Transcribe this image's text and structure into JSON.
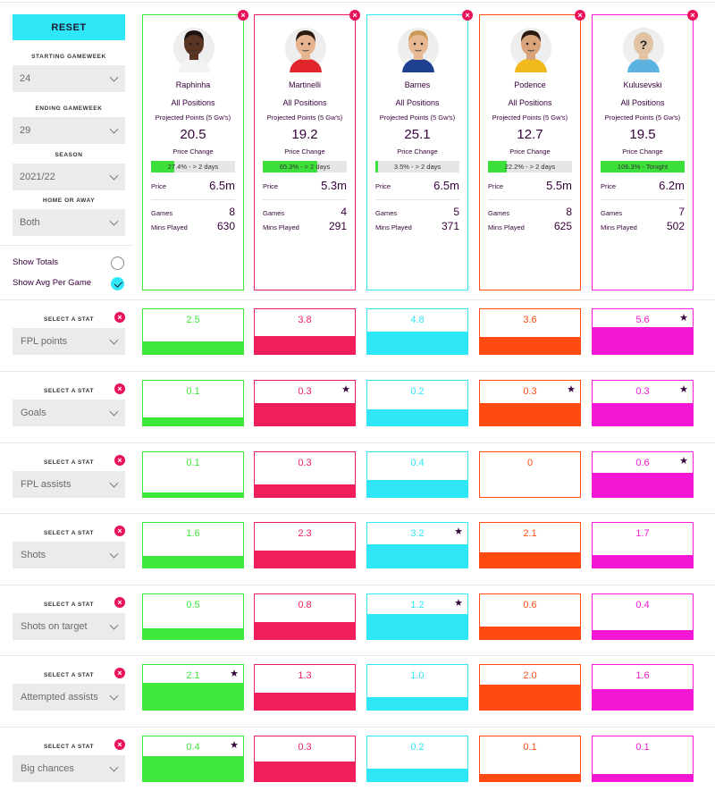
{
  "reset_label": "RESET",
  "filters": [
    {
      "label": "STARTING GAMEWEEK",
      "value": "24"
    },
    {
      "label": "ENDING GAMEWEEK",
      "value": "29"
    },
    {
      "label": "SEASON",
      "value": "2021/22"
    },
    {
      "label": "HOME OR AWAY",
      "value": "Both"
    }
  ],
  "toggles": [
    {
      "label": "Show Totals",
      "checked": false
    },
    {
      "label": "Show Avg Per Game",
      "checked": true
    }
  ],
  "card_labels": {
    "projected": "Projected Points (5 Gw's)",
    "price_change": "Price Change",
    "price": "Price",
    "games": "Games",
    "mins": "Mins Played"
  },
  "players": [
    {
      "name": "Raphinha",
      "position": "All Positions",
      "projected": "20.5",
      "price_change_text": "27.4% - > 2 days",
      "price_change_pct": 27.4,
      "price": "6.5m",
      "games": "8",
      "mins": "630",
      "color": "#3de83a",
      "avatar": "dark"
    },
    {
      "name": "Martinelli",
      "position": "All Positions",
      "projected": "19.2",
      "price_change_text": "65.3% - > 2 days",
      "price_change_pct": 65.3,
      "price": "5.3m",
      "games": "4",
      "mins": "291",
      "color": "#f01e5a",
      "avatar": "red"
    },
    {
      "name": "Barnes",
      "position": "All Positions",
      "projected": "25.1",
      "price_change_text": "3.5% - > 2 days",
      "price_change_pct": 3.5,
      "price": "6.5m",
      "games": "5",
      "mins": "371",
      "color": "#2ee6f5",
      "avatar": "blue"
    },
    {
      "name": "Podence",
      "position": "All Positions",
      "projected": "12.7",
      "price_change_text": "22.2% - > 2 days",
      "price_change_pct": 22.2,
      "price": "5.5m",
      "games": "8",
      "mins": "625",
      "color": "#ff4b12",
      "avatar": "yellow"
    },
    {
      "name": "Kulusevski",
      "position": "All Positions",
      "projected": "19.5",
      "price_change_text": "106.3% - Tonight",
      "price_change_pct": 100,
      "price": "6.2m",
      "games": "7",
      "mins": "502",
      "color": "#f318d6",
      "avatar": "unknown"
    }
  ],
  "stat_select_label": "SELECT A STAT",
  "stats": [
    {
      "name": "FPL points",
      "values": [
        "2.5",
        "3.8",
        "4.8",
        "3.6",
        "5.6"
      ],
      "fills": [
        0.28,
        0.4,
        0.5,
        0.38,
        0.6
      ],
      "star": 4
    },
    {
      "name": "Goals",
      "values": [
        "0.1",
        "0.3",
        "0.2",
        "0.3",
        "0.3"
      ],
      "fills": [
        0.17,
        0.5,
        0.35,
        0.5,
        0.5
      ],
      "star": [
        1,
        3,
        4
      ]
    },
    {
      "name": "FPL assists",
      "values": [
        "0.1",
        "0.3",
        "0.4",
        "0",
        "0.6"
      ],
      "fills": [
        0.1,
        0.28,
        0.37,
        0,
        0.53
      ],
      "star": 4
    },
    {
      "name": "Shots",
      "values": [
        "1.6",
        "2.3",
        "3.2",
        "2.1",
        "1.7"
      ],
      "fills": [
        0.26,
        0.37,
        0.52,
        0.34,
        0.27
      ],
      "star": 2
    },
    {
      "name": "Shots on target",
      "values": [
        "0.5",
        "0.8",
        "1.2",
        "0.6",
        "0.4"
      ],
      "fills": [
        0.24,
        0.38,
        0.56,
        0.28,
        0.19
      ],
      "star": 2
    },
    {
      "name": "Attempted assists",
      "values": [
        "2.1",
        "1.3",
        "1.0",
        "2.0",
        "1.6"
      ],
      "fills": [
        0.6,
        0.37,
        0.29,
        0.57,
        0.46
      ],
      "star": 0
    },
    {
      "name": "Big chances",
      "values": [
        "0.4",
        "0.3",
        "0.2",
        "0.1",
        "0.1"
      ],
      "fills": [
        0.57,
        0.43,
        0.29,
        0.15,
        0.15
      ],
      "star": 0
    }
  ]
}
